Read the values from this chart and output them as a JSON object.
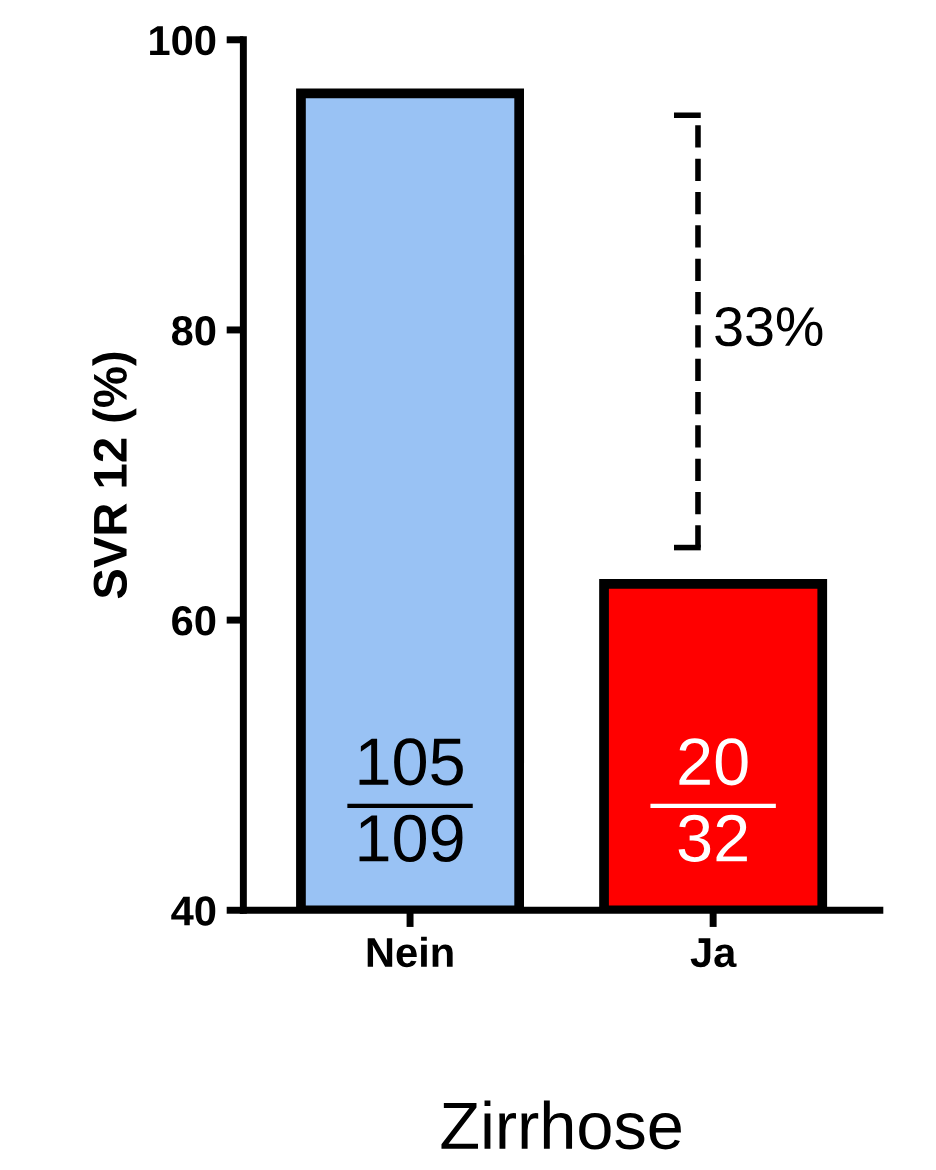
{
  "chart_data": {
    "type": "bar",
    "categories": [
      "Nein",
      "Ja"
    ],
    "values": [
      96.3,
      62.5
    ],
    "colors": [
      "#99c2f4",
      "#ff0000"
    ],
    "ylabel": "SVR 12 (%)",
    "xlabel": "Zirrhose",
    "ylim": [
      40,
      100
    ],
    "yticks": [
      40,
      60,
      80,
      100
    ],
    "annotations": [
      "33%",
      "105\n109",
      "20\n32"
    ],
    "grid": false
  }
}
